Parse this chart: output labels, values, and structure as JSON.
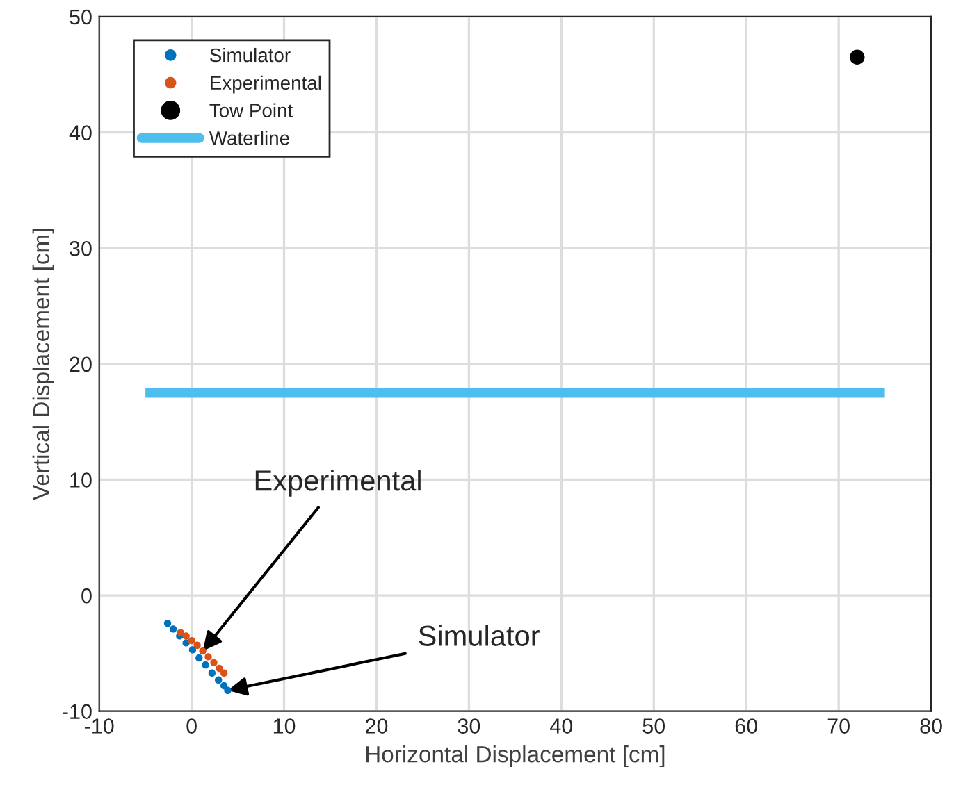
{
  "chart_data": {
    "type": "scatter",
    "xlabel": "Horizontal Displacement [cm]",
    "ylabel": "Vertical Displacement [cm]",
    "xlim": [
      -10,
      80
    ],
    "xticks": [
      -10,
      0,
      10,
      20,
      30,
      40,
      50,
      60,
      70,
      80
    ],
    "ylim": [
      -10,
      50
    ],
    "yticks": [
      -10,
      0,
      10,
      20,
      30,
      40,
      50
    ],
    "grid": true,
    "legend": "top left",
    "series": [
      {
        "name": "Simulator",
        "marker": "circle",
        "color": "#0072bd",
        "x": [
          -2.6,
          -2.0,
          -1.3,
          -0.6,
          0.1,
          0.8,
          1.5,
          2.2,
          2.9,
          3.5,
          3.9
        ],
        "values": [
          -2.4,
          -2.9,
          -3.5,
          -4.1,
          -4.7,
          -5.4,
          -6.0,
          -6.7,
          -7.3,
          -7.8,
          -8.2
        ]
      },
      {
        "name": "Experimental",
        "marker": "circle",
        "color": "#d95319",
        "x": [
          -1.2,
          -0.6,
          0.0,
          0.6,
          1.2,
          1.8,
          2.4,
          3.0,
          3.5
        ],
        "values": [
          -3.2,
          -3.5,
          -3.9,
          -4.3,
          -4.8,
          -5.3,
          -5.8,
          -6.3,
          -6.7
        ]
      },
      {
        "name": "Tow Point",
        "marker": "circle",
        "color": "#000000",
        "x": [
          72
        ],
        "values": [
          46.5
        ]
      },
      {
        "name": "Waterline",
        "type": "line",
        "color": "#4dbeee",
        "x": [
          -5,
          75
        ],
        "values": [
          17.5,
          17.5
        ]
      }
    ],
    "annotations": [
      {
        "text": "Experimental",
        "x": 1.2,
        "y": -4.8
      },
      {
        "text": "Simulator",
        "x": 3.9,
        "y": -8.2
      }
    ]
  }
}
